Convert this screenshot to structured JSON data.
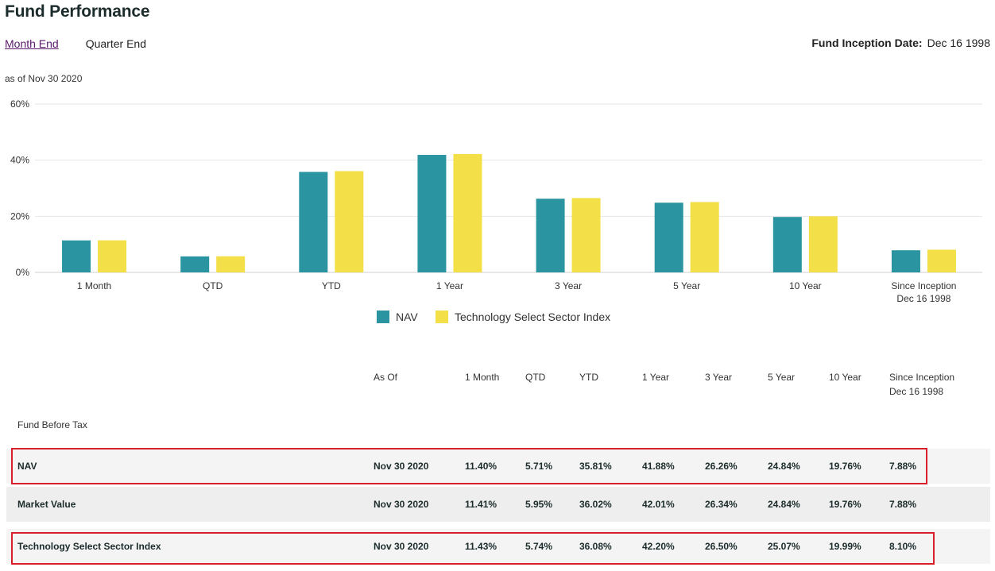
{
  "header": {
    "title": "Fund Performance",
    "tabs": [
      {
        "label": "Month End",
        "active": true
      },
      {
        "label": "Quarter End",
        "active": false
      }
    ],
    "inception_label": "Fund Inception Date:",
    "inception_value": "Dec 16 1998",
    "as_of": "as of Nov 30 2020"
  },
  "colors": {
    "nav": "#2a94a0",
    "index": "#f3e048",
    "grid": "#e6e6e6",
    "highlight": "#d9202a"
  },
  "chart_data": {
    "type": "bar",
    "categories": [
      "1 Month",
      "QTD",
      "YTD",
      "1 Year",
      "3 Year",
      "5 Year",
      "10 Year",
      "Since Inception\nDec 16 1998"
    ],
    "series": [
      {
        "name": "NAV",
        "values": [
          11.4,
          5.71,
          35.81,
          41.88,
          26.26,
          24.84,
          19.76,
          7.88
        ]
      },
      {
        "name": "Technology Select Sector Index",
        "values": [
          11.43,
          5.74,
          36.08,
          42.2,
          26.5,
          25.07,
          19.99,
          8.1
        ]
      }
    ],
    "yticks": [
      "0%",
      "20%",
      "40%",
      "60%"
    ],
    "ylim": [
      0,
      60
    ],
    "grid": true,
    "legend": "bottom-center"
  },
  "table": {
    "columns": [
      "As Of",
      "1 Month",
      "QTD",
      "YTD",
      "1 Year",
      "3 Year",
      "5 Year",
      "10 Year",
      "Since Inception\nDec 16 1998"
    ],
    "section_label": "Fund Before Tax",
    "rows": [
      {
        "label": "NAV",
        "cells": [
          "Nov 30 2020",
          "11.40%",
          "5.71%",
          "35.81%",
          "41.88%",
          "26.26%",
          "24.84%",
          "19.76%",
          "7.88%"
        ]
      },
      {
        "label": "Market Value",
        "cells": [
          "Nov 30 2020",
          "11.41%",
          "5.95%",
          "36.02%",
          "42.01%",
          "26.34%",
          "24.84%",
          "19.76%",
          "7.88%"
        ]
      },
      {
        "label": "Technology Select Sector Index",
        "cells": [
          "Nov 30 2020",
          "11.43%",
          "5.74%",
          "36.08%",
          "42.20%",
          "26.50%",
          "25.07%",
          "19.99%",
          "8.10%"
        ]
      }
    ]
  }
}
